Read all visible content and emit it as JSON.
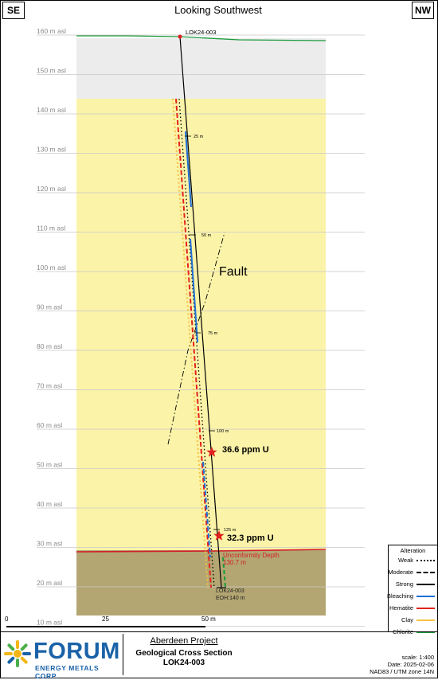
{
  "header": {
    "left_direction": "SE",
    "right_direction": "NW",
    "view_title": "Looking Southwest"
  },
  "elevation_axis": {
    "unit_suffix": "m asl",
    "ticks": [
      160,
      150,
      140,
      130,
      120,
      110,
      100,
      90,
      80,
      70,
      60,
      50,
      40,
      30,
      20,
      10
    ]
  },
  "distance_scale": {
    "ticks": [
      "0",
      "25",
      "50 m"
    ]
  },
  "drillhole": {
    "name": "LOK24-003",
    "depth_ticks": [
      "25 m",
      "50 m",
      "75 m",
      "100 m",
      "125 m"
    ],
    "eoh_label": "EOH:140  m",
    "bottom_label": "LOK24-003"
  },
  "fault_label": "Fault",
  "assays": [
    {
      "value": "36.6 ppm U",
      "elevation_m": 54
    },
    {
      "value": "32.3 ppm U",
      "elevation_m": 33
    }
  ],
  "unconformity": {
    "label": "Unconformity Depth",
    "depth": "130.7 m",
    "elevation_m": 29
  },
  "legend": {
    "title": "Alteration",
    "items": [
      {
        "label": "Weak",
        "color": "#000000",
        "style": "dotted"
      },
      {
        "label": "Moderate",
        "color": "#000000",
        "style": "dashed"
      },
      {
        "label": "Strong",
        "color": "#000000",
        "style": "solid"
      },
      {
        "label": "Bleaching",
        "color": "#1f6fd6",
        "style": "solid"
      },
      {
        "label": "Hematite",
        "color": "#e2231a",
        "style": "solid"
      },
      {
        "label": "Clay",
        "color": "#f5c242",
        "style": "solid"
      },
      {
        "label": "Chlorite",
        "color": "#1a9a3b",
        "style": "solid"
      }
    ]
  },
  "colors": {
    "overburden": "#ececec",
    "sandstone": "#fbf3a8",
    "basement": "#b3a672",
    "unconformity_line": "#d0202a",
    "hole_trace": "#000000",
    "assay_star": "#e0201c",
    "brand": "#1a62a8"
  },
  "footer": {
    "company_main": "FORUM",
    "company_sub": "ENERGY METALS CORP.",
    "project": "Aberdeen Project",
    "section_title": "Geological Cross Section",
    "hole": "LOK24-003",
    "scale": "scale: 1:400",
    "date": "Date: 2025-02-06",
    "projection": "NAD83 / UTM zone 14N"
  }
}
